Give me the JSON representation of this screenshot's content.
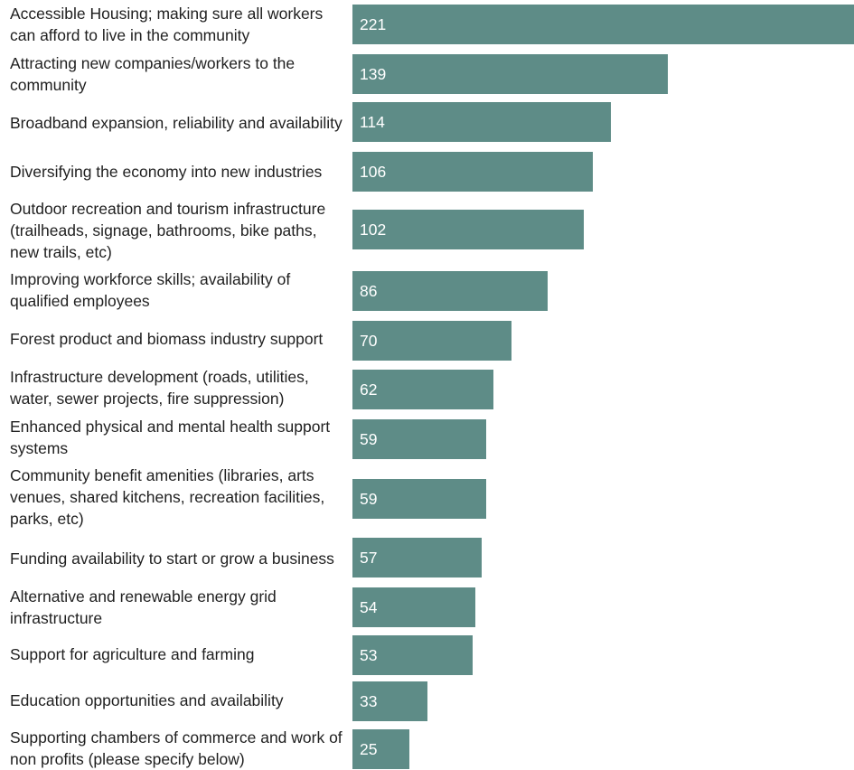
{
  "chart_data": {
    "type": "bar",
    "orientation": "horizontal",
    "categories": [
      "Accessible Housing; making sure all workers can afford to live in the community",
      "Attracting new companies/workers to the community",
      "Broadband expansion, reliability and availability",
      "Diversifying the economy into new industries",
      "Outdoor recreation and tourism infrastructure (trailheads, signage, bathrooms, bike paths, new trails, etc)",
      "Improving workforce skills; availability of qualified employees",
      "Forest product and biomass industry support",
      "Infrastructure development (roads, utilities, water, sewer projects, fire suppression)",
      "Enhanced physical and mental health support systems",
      "Community benefit amenities (libraries, arts venues, shared kitchens, recreation facilities, parks, etc)",
      "Funding availability to start or grow a business",
      "Alternative and renewable energy grid infrastructure",
      "Support for agriculture and farming",
      "Education opportunities and availability",
      "Supporting chambers of commerce and work of non profits (please specify below)"
    ],
    "values": [
      221,
      139,
      114,
      106,
      102,
      86,
      70,
      62,
      59,
      59,
      57,
      54,
      53,
      33,
      25
    ],
    "data_labels": [
      "221",
      "139",
      "114",
      "106",
      "102",
      "86",
      "70",
      "62",
      "59",
      "59",
      "57",
      "54",
      "53",
      "33",
      "25"
    ],
    "xlim": [
      0,
      221
    ],
    "grid": false,
    "legend": "none",
    "bar_color": "#5e8c87",
    "label_color": "#ffffff"
  }
}
